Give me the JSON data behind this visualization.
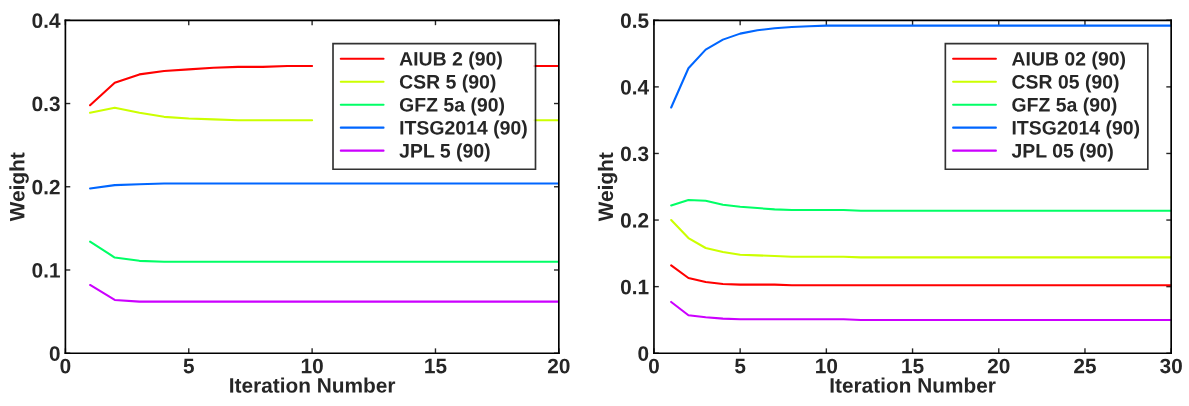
{
  "chart_data": [
    {
      "type": "line",
      "xlabel": "Iteration Number",
      "ylabel": "Weight",
      "x": [
        1,
        2,
        3,
        4,
        5,
        6,
        7,
        8,
        9,
        10,
        11,
        12,
        13,
        14,
        15,
        16,
        17,
        18,
        19,
        20
      ],
      "xlim": [
        0,
        20
      ],
      "xticks": [
        0,
        5,
        10,
        15,
        20
      ],
      "ylim": [
        0,
        0.4
      ],
      "yticks": [
        0,
        0.1,
        0.2,
        0.3,
        0.4
      ],
      "legend": "top right",
      "grid": false,
      "series": [
        {
          "name": "AIUB 2 (90)",
          "color": "#ff0000",
          "values": [
            0.298,
            0.325,
            0.335,
            0.339,
            0.341,
            0.343,
            0.344,
            0.344,
            0.345,
            0.345,
            null,
            null,
            null,
            null,
            null,
            null,
            null,
            null,
            0.345,
            0.345
          ]
        },
        {
          "name": "CSR 5 (90)",
          "color": "#ccff00",
          "values": [
            0.289,
            0.295,
            0.289,
            0.284,
            0.282,
            0.281,
            0.28,
            0.28,
            0.28,
            0.28,
            null,
            null,
            null,
            null,
            null,
            null,
            null,
            null,
            0.28,
            0.28
          ]
        },
        {
          "name": "GFZ 5a (90)",
          "color": "#00ff66",
          "values": [
            0.134,
            0.115,
            0.111,
            0.11,
            0.11,
            0.11,
            0.11,
            0.11,
            0.11,
            0.11,
            0.11,
            0.11,
            0.11,
            0.11,
            0.11,
            0.11,
            0.11,
            0.11,
            0.11,
            0.11
          ]
        },
        {
          "name": "ITSG2014 (90)",
          "color": "#0066ff",
          "values": [
            0.198,
            0.202,
            0.203,
            0.204,
            0.204,
            0.204,
            0.204,
            0.204,
            0.204,
            0.204,
            0.204,
            0.204,
            0.204,
            0.204,
            0.204,
            0.204,
            0.204,
            0.204,
            0.204,
            0.204
          ]
        },
        {
          "name": "JPL 5 (90)",
          "color": "#cc00ff",
          "values": [
            0.082,
            0.064,
            0.062,
            0.062,
            0.062,
            0.062,
            0.062,
            0.062,
            0.062,
            0.062,
            0.062,
            0.062,
            0.062,
            0.062,
            0.062,
            0.062,
            0.062,
            0.062,
            0.062,
            0.062
          ]
        }
      ]
    },
    {
      "type": "line",
      "xlabel": "Iteration Number",
      "ylabel": "Weight",
      "x": [
        1,
        2,
        3,
        4,
        5,
        6,
        7,
        8,
        9,
        10,
        11,
        12,
        13,
        14,
        15,
        16,
        17,
        18,
        19,
        20,
        21,
        22,
        23,
        24,
        25,
        26,
        27,
        28,
        29,
        30
      ],
      "xlim": [
        0,
        30
      ],
      "xticks": [
        0,
        5,
        10,
        15,
        20,
        25,
        30
      ],
      "ylim": [
        0,
        0.5
      ],
      "yticks": [
        0,
        0.1,
        0.2,
        0.3,
        0.4,
        0.5
      ],
      "legend": "top right",
      "grid": false,
      "series": [
        {
          "name": "AIUB 02 (90)",
          "color": "#ff0000",
          "values": [
            0.132,
            0.113,
            0.107,
            0.104,
            0.103,
            0.103,
            0.103,
            0.102,
            0.102,
            0.102,
            0.102,
            0.102,
            0.102,
            0.102,
            0.102,
            0.102,
            0.102,
            0.102,
            0.102,
            0.102,
            0.102,
            0.102,
            0.102,
            0.102,
            0.102,
            0.102,
            0.102,
            0.102,
            0.102,
            0.102
          ]
        },
        {
          "name": "CSR 05 (90)",
          "color": "#ccff00",
          "values": [
            0.2,
            0.173,
            0.158,
            0.152,
            0.148,
            0.147,
            0.146,
            0.145,
            0.145,
            0.145,
            0.145,
            0.144,
            0.144,
            0.144,
            0.144,
            0.144,
            0.144,
            0.144,
            0.144,
            0.144,
            0.144,
            0.144,
            0.144,
            0.144,
            0.144,
            0.144,
            0.144,
            0.144,
            0.144,
            0.144
          ]
        },
        {
          "name": "GFZ 5a (90)",
          "color": "#00ff66",
          "values": [
            0.222,
            0.23,
            0.229,
            0.223,
            0.22,
            0.218,
            0.216,
            0.215,
            0.215,
            0.215,
            0.215,
            0.214,
            0.214,
            0.214,
            0.214,
            0.214,
            0.214,
            0.214,
            0.214,
            0.214,
            0.214,
            0.214,
            0.214,
            0.214,
            0.214,
            0.214,
            0.214,
            0.214,
            0.214,
            0.214
          ]
        },
        {
          "name": "ITSG2014 (90)",
          "color": "#0066ff",
          "values": [
            0.369,
            0.428,
            0.456,
            0.471,
            0.48,
            0.485,
            0.488,
            0.49,
            0.491,
            0.492,
            0.492,
            0.492,
            0.492,
            0.492,
            0.492,
            0.492,
            0.492,
            0.492,
            0.492,
            0.492,
            0.492,
            0.492,
            0.492,
            0.492,
            0.492,
            0.492,
            0.492,
            0.492,
            0.492,
            0.492
          ]
        },
        {
          "name": "JPL 05 (90)",
          "color": "#cc00ff",
          "values": [
            0.077,
            0.057,
            0.054,
            0.052,
            0.051,
            0.051,
            0.051,
            0.051,
            0.051,
            0.051,
            0.051,
            0.05,
            0.05,
            0.05,
            0.05,
            0.05,
            0.05,
            0.05,
            0.05,
            0.05,
            0.05,
            0.05,
            0.05,
            0.05,
            0.05,
            0.05,
            0.05,
            0.05,
            0.05,
            0.05
          ]
        }
      ]
    }
  ]
}
